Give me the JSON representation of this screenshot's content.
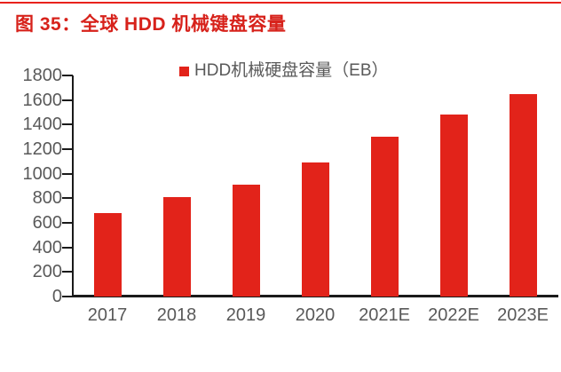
{
  "figure": {
    "title": "图 35：全球 HDD 机械键盘容量"
  },
  "colors": {
    "background": "#FFFFFF",
    "bar": "#E2231A",
    "title": "#D7221B",
    "accent_rule": "#E8221C",
    "axis_text": "#595959",
    "axis_line": "#1A1A1A"
  },
  "chart_data": {
    "type": "bar",
    "title": "图 35：全球 HDD 机械键盘容量",
    "legend": {
      "label": "HDD机械硬盘容量（EB）",
      "position": "top-center",
      "marker": "red-square"
    },
    "categories": [
      "2017",
      "2018",
      "2019",
      "2020",
      "2021E",
      "2022E",
      "2023E"
    ],
    "values": [
      680,
      810,
      910,
      1090,
      1300,
      1480,
      1650
    ],
    "unit": "EB",
    "xlabel": "",
    "ylabel": "",
    "ylim": [
      0,
      1800
    ],
    "ytick_step": 200,
    "grid": false
  }
}
